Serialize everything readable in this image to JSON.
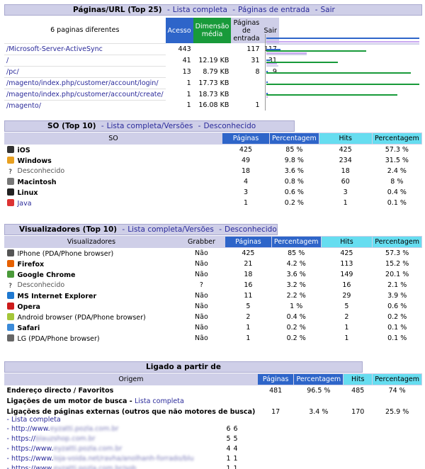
{
  "urls": {
    "title": "Páginas/URL (Top 25)",
    "links": [
      "Lista completa",
      "Páginas de entrada",
      "Sair"
    ],
    "summary": "6 paginas diferentes",
    "headers": [
      "Acesso",
      "Dimensão média",
      "Páginas de entrada",
      "Sair"
    ],
    "rows": [
      {
        "url": "/Microsoft-Server-ActiveSync",
        "acesso": "443",
        "dim": "",
        "entrada": "117",
        "sair": "117"
      },
      {
        "url": "/",
        "acesso": "41",
        "dim": "12.19 KB",
        "entrada": "31",
        "sair": "31"
      },
      {
        "url": "/pc/",
        "acesso": "13",
        "dim": "8.79 KB",
        "entrada": "8",
        "sair": "9"
      },
      {
        "url": "/magento/index.php/customer/account/login/",
        "acesso": "1",
        "dim": "17.73 KB",
        "entrada": "",
        "sair": ""
      },
      {
        "url": "/magento/index.php/customer/account/create/",
        "acesso": "1",
        "dim": "18.73 KB",
        "entrada": "",
        "sair": ""
      },
      {
        "url": "/magento/",
        "acesso": "1",
        "dim": "16.08 KB",
        "entrada": "1",
        "sair": ""
      }
    ]
  },
  "os": {
    "title": "SO (Top 10)",
    "links": [
      "Lista completa/Versões",
      "Desconhecido"
    ],
    "headers": [
      "SO",
      "Páginas",
      "Percentagem",
      "Hits",
      "Percentagem"
    ],
    "rows": [
      {
        "icon": "ios-icon",
        "name": "iOS",
        "bold": true,
        "pages": "425",
        "pp": "85 %",
        "hits": "425",
        "hp": "57.3 %"
      },
      {
        "icon": "windows-icon",
        "name": "Windows",
        "bold": true,
        "pages": "49",
        "pp": "9.8 %",
        "hits": "234",
        "hp": "31.5 %"
      },
      {
        "icon": "unknown-icon",
        "name": "Desconhecido",
        "bold": false,
        "pages": "18",
        "pp": "3.6 %",
        "hits": "18",
        "hp": "2.4 %"
      },
      {
        "icon": "macintosh-icon",
        "name": "Macintosh",
        "bold": true,
        "pages": "4",
        "pp": "0.8 %",
        "hits": "60",
        "hp": "8 %"
      },
      {
        "icon": "linux-icon",
        "name": "Linux",
        "bold": true,
        "pages": "3",
        "pp": "0.6 %",
        "hits": "3",
        "hp": "0.4 %"
      },
      {
        "icon": "java-icon",
        "name": "Java",
        "bold": false,
        "link": true,
        "pages": "1",
        "pp": "0.2 %",
        "hits": "1",
        "hp": "0.1 %"
      }
    ]
  },
  "browsers": {
    "title": "Visualizadores (Top 10)",
    "links": [
      "Lista completa/Versões",
      "Desconhecido"
    ],
    "headers": [
      "Visualizadores",
      "Grabber",
      "Páginas",
      "Percentagem",
      "Hits",
      "Percentagem"
    ],
    "rows": [
      {
        "icon": "iphone-icon",
        "name": "IPhone (PDA/Phone browser)",
        "bold": false,
        "grab": "Não",
        "pages": "425",
        "pp": "85 %",
        "hits": "425",
        "hp": "57.3 %"
      },
      {
        "icon": "firefox-icon",
        "name": "Firefox",
        "bold": true,
        "grab": "Não",
        "pages": "21",
        "pp": "4.2 %",
        "hits": "113",
        "hp": "15.2 %"
      },
      {
        "icon": "chrome-icon",
        "name": "Google Chrome",
        "bold": true,
        "grab": "Não",
        "pages": "18",
        "pp": "3.6 %",
        "hits": "149",
        "hp": "20.1 %"
      },
      {
        "icon": "unknown-icon",
        "name": "Desconhecido",
        "bold": false,
        "grab": "?",
        "pages": "16",
        "pp": "3.2 %",
        "hits": "16",
        "hp": "2.1 %"
      },
      {
        "icon": "ie-icon",
        "name": "MS Internet Explorer",
        "bold": true,
        "grab": "Não",
        "pages": "11",
        "pp": "2.2 %",
        "hits": "29",
        "hp": "3.9 %"
      },
      {
        "icon": "opera-icon",
        "name": "Opera",
        "bold": true,
        "grab": "Não",
        "pages": "5",
        "pp": "1 %",
        "hits": "5",
        "hp": "0.6 %"
      },
      {
        "icon": "android-icon",
        "name": "Android browser (PDA/Phone browser)",
        "bold": false,
        "grab": "Não",
        "pages": "2",
        "pp": "0.4 %",
        "hits": "2",
        "hp": "0.2 %"
      },
      {
        "icon": "safari-icon",
        "name": "Safari",
        "bold": true,
        "grab": "Não",
        "pages": "1",
        "pp": "0.2 %",
        "hits": "1",
        "hp": "0.1 %"
      },
      {
        "icon": "phone-icon",
        "name": "LG (PDA/Phone browser)",
        "bold": false,
        "grab": "Não",
        "pages": "1",
        "pp": "0.2 %",
        "hits": "1",
        "hp": "0.1 %"
      }
    ]
  },
  "referrers": {
    "title": "Ligado a partir de",
    "headers": [
      "Origem",
      "Páginas",
      "Percentagem",
      "Hits",
      "Percentagem"
    ],
    "direct": {
      "label": "Endereço directo / Favoritos",
      "pages": "481",
      "pp": "96.5 %",
      "hits": "485",
      "hp": "74 %"
    },
    "search": {
      "label": "Ligações de um motor de busca - ",
      "link": "Lista completa"
    },
    "external": {
      "label": "Ligações de páginas externas (outros que não motores de busca)",
      "link": "- Lista completa",
      "pages": "17",
      "pp": "3.4 %",
      "hits": "170",
      "hp": "25.9 %"
    },
    "items": [
      {
        "prefix": "- http://www.",
        "blur": "eyzatti.pozla.com.br",
        "a": "6",
        "b": "6"
      },
      {
        "prefix": "- https://",
        "blur": "blauzshop.com.br",
        "a": "5",
        "b": "5"
      },
      {
        "prefix": "- https://www.",
        "blur": "eyzatti.pozla.com.br",
        "a": "4",
        "b": "4"
      },
      {
        "prefix": "- https://www.",
        "blur": "loja-voida.net/ravha/anolhanh-forrado/blu",
        "a": "1",
        "b": "1"
      },
      {
        "prefix": "- https://www.",
        "blur": "eyzatti.pozla.com.br/sob",
        "a": "1",
        "b": "1"
      }
    ]
  },
  "colors": {
    "blue": "#2e65c9",
    "green": "#189a3a",
    "cyan": "#66ddf0",
    "lilac": "#cfcfe8",
    "violet": "#c8a8f0"
  }
}
